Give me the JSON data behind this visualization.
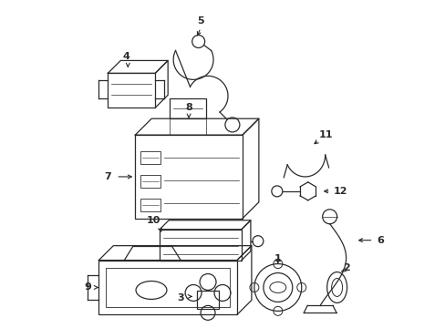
{
  "bg_color": "#ffffff",
  "line_color": "#2a2a2a",
  "figsize": [
    4.89,
    3.6
  ],
  "dpi": 100,
  "lw": 0.9
}
